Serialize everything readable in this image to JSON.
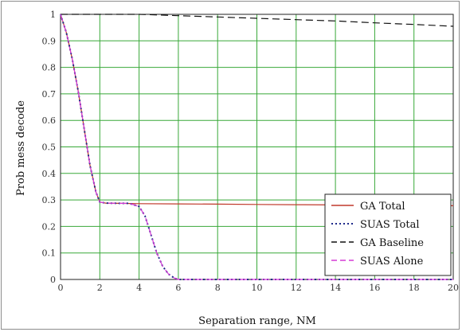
{
  "chart_data": {
    "type": "line",
    "title": "",
    "xlabel": "Separation range, NM",
    "ylabel": "Prob mess decode",
    "xlim": [
      0,
      20
    ],
    "ylim": [
      0,
      1
    ],
    "x_ticks": [
      "0",
      "2",
      "4",
      "6",
      "8",
      "10",
      "12",
      "14",
      "16",
      "18",
      "20"
    ],
    "y_ticks": [
      "0",
      "0.1",
      "0.2",
      "0.3",
      "0.4",
      "0.5",
      "0.6",
      "0.7",
      "0.8",
      "0.9",
      "1"
    ],
    "grid": true,
    "grid_color": "#38a838",
    "legend_position": "bottom-right",
    "series": [
      {
        "name": "GA Total",
        "color": "#c0392b",
        "style": "solid",
        "x": [
          0,
          0.3,
          0.6,
          0.9,
          1.2,
          1.5,
          1.8,
          2,
          2.3,
          3,
          4,
          6,
          8,
          10,
          12,
          14,
          16,
          18,
          20
        ],
        "y": [
          1,
          0.93,
          0.83,
          0.71,
          0.57,
          0.43,
          0.33,
          0.292,
          0.288,
          0.287,
          0.286,
          0.285,
          0.284,
          0.283,
          0.282,
          0.281,
          0.28,
          0.279,
          0.278
        ]
      },
      {
        "name": "SUAS Total",
        "color": "#1f2a8a",
        "style": "dotted",
        "x": [
          0,
          0.3,
          0.6,
          0.9,
          1.2,
          1.5,
          1.8,
          2,
          2.3,
          3,
          3.5,
          4,
          4.3,
          4.6,
          4.9,
          5.2,
          5.5,
          5.8,
          6,
          8,
          10,
          12,
          14,
          16,
          18,
          20
        ],
        "y": [
          1,
          0.93,
          0.83,
          0.71,
          0.57,
          0.43,
          0.33,
          0.292,
          0.288,
          0.287,
          0.287,
          0.275,
          0.24,
          0.17,
          0.1,
          0.05,
          0.02,
          0.005,
          0,
          0,
          0,
          0,
          0,
          0,
          0,
          0
        ]
      },
      {
        "name": "GA Baseline",
        "color": "#111111",
        "style": "dashed",
        "x": [
          0,
          2,
          4,
          6,
          8,
          10,
          12,
          14,
          16,
          18,
          20
        ],
        "y": [
          1,
          1,
          1,
          0.995,
          0.99,
          0.985,
          0.98,
          0.975,
          0.968,
          0.962,
          0.955
        ]
      },
      {
        "name": "SUAS Alone",
        "color": "#d63ad6",
        "style": "dashed",
        "x": [
          0,
          0.3,
          0.6,
          0.9,
          1.2,
          1.5,
          1.8,
          2,
          2.3,
          3,
          3.5,
          4,
          4.3,
          4.6,
          4.9,
          5.2,
          5.5,
          5.8,
          6,
          8,
          10,
          12,
          14,
          16,
          18,
          20
        ],
        "y": [
          1,
          0.93,
          0.83,
          0.71,
          0.57,
          0.43,
          0.33,
          0.292,
          0.288,
          0.287,
          0.287,
          0.275,
          0.24,
          0.17,
          0.1,
          0.05,
          0.02,
          0.005,
          0,
          0,
          0,
          0,
          0,
          0,
          0,
          0
        ]
      }
    ]
  }
}
